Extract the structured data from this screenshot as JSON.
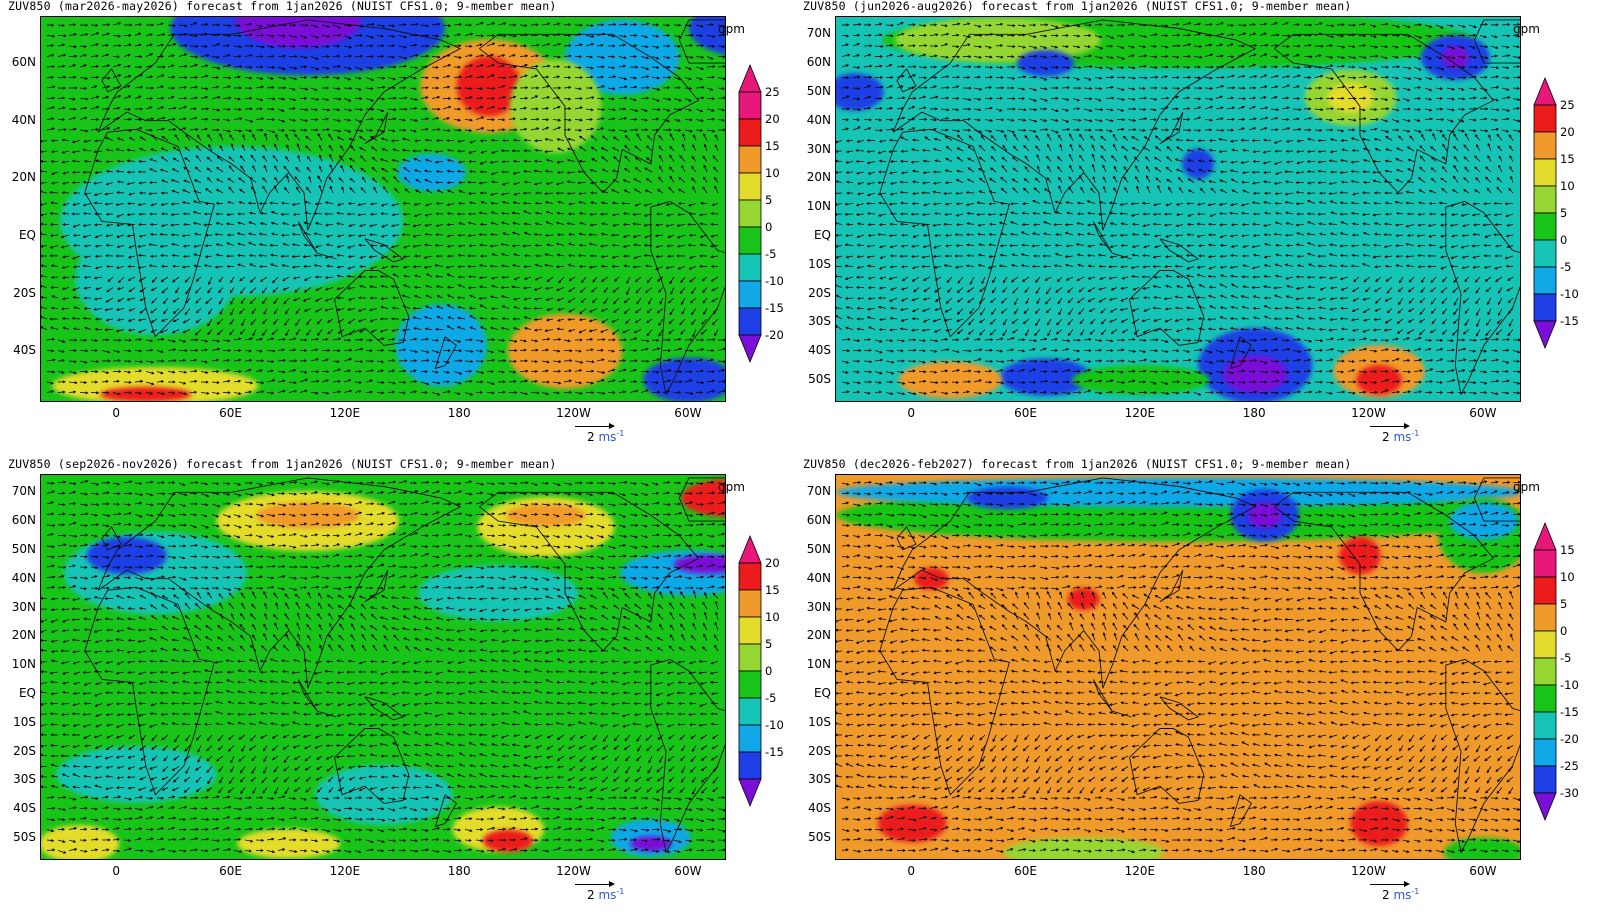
{
  "figure": {
    "colors": {
      "scale": [
        "#7a0fd8",
        "#1f3fe6",
        "#10a8e6",
        "#16c4b6",
        "#19c419",
        "#96d633",
        "#e4dc2c",
        "#f09a2c",
        "#ec1c1c",
        "#e8187a"
      ],
      "vector": "#000000",
      "coast": "#111111",
      "unit_blue": "#2f56d6"
    },
    "vector_scale_text": "2",
    "vector_scale_unit": "ms",
    "vector_scale_exp": "-1",
    "unit_label": "gpm"
  },
  "panels": [
    {
      "title": "ZUV850 (mar2026-may2026) forecast from 1jan2026 (NUIST CFS1.0; 9-member mean)",
      "lat_labels": [
        "60N",
        "40N",
        "20N",
        "EQ",
        "20S",
        "40S"
      ],
      "lon_labels": [
        "0",
        "60E",
        "120E",
        "180",
        "120W",
        "60W"
      ],
      "colorbar": {
        "levels": [
          "-20",
          "-15",
          "-10",
          "-5",
          "0",
          "5",
          "10",
          "15",
          "20",
          "25"
        ],
        "colors": [
          "#7a0fd8",
          "#1f3fe6",
          "#10a8e6",
          "#16c4b6",
          "#19c419",
          "#96d633",
          "#e4dc2c",
          "#f09a2c",
          "#ec1c1c",
          "#e8187a",
          "#e8187a"
        ]
      },
      "field": {
        "background": "#19c419",
        "blobs": [
          {
            "lon": 60,
            "lat": 5,
            "w": 150,
            "h": 40,
            "color": "#16c4b6"
          },
          {
            "lon": 20,
            "lat": -15,
            "w": 70,
            "h": 30,
            "color": "#16c4b6"
          },
          {
            "lon": 100,
            "lat": 72,
            "w": 120,
            "h": 25,
            "color": "#1f3fe6"
          },
          {
            "lon": 95,
            "lat": 75,
            "w": 55,
            "h": 15,
            "color": "#7a0fd8"
          },
          {
            "lon": 195,
            "lat": 52,
            "w": 60,
            "h": 25,
            "color": "#f09a2c"
          },
          {
            "lon": 195,
            "lat": 52,
            "w": 28,
            "h": 16,
            "color": "#ec1c1c"
          },
          {
            "lon": 265,
            "lat": 62,
            "w": 50,
            "h": 20,
            "color": "#10a8e6"
          },
          {
            "lon": 330,
            "lat": 72,
            "w": 50,
            "h": 15,
            "color": "#1f3fe6"
          },
          {
            "lon": 230,
            "lat": 45,
            "w": 40,
            "h": 25,
            "color": "#96d633"
          },
          {
            "lon": 165,
            "lat": 22,
            "w": 30,
            "h": 10,
            "color": "#10a8e6"
          },
          {
            "lon": 170,
            "lat": -38,
            "w": 40,
            "h": 22,
            "color": "#10a8e6"
          },
          {
            "lon": 235,
            "lat": -40,
            "w": 50,
            "h": 20,
            "color": "#f09a2c"
          },
          {
            "lon": 300,
            "lat": -50,
            "w": 40,
            "h": 12,
            "color": "#1f3fe6"
          },
          {
            "lon": 20,
            "lat": -52,
            "w": 90,
            "h": 10,
            "color": "#e4dc2c"
          },
          {
            "lon": 15,
            "lat": -55,
            "w": 40,
            "h": 4,
            "color": "#ec1c1c"
          }
        ]
      }
    },
    {
      "title": "ZUV850 (jun2026-aug2026) forecast from 1jan2026 (NUIST CFS1.0; 9-member mean)",
      "lat_labels": [
        "70N",
        "60N",
        "50N",
        "40N",
        "30N",
        "20N",
        "10N",
        "EQ",
        "10S",
        "20S",
        "30S",
        "40S",
        "50S"
      ],
      "lon_labels": [
        "0",
        "60E",
        "120E",
        "180",
        "120W",
        "60W"
      ],
      "colorbar": {
        "levels": [
          "-15",
          "-10",
          "-5",
          "0",
          "5",
          "10",
          "15",
          "20",
          "25"
        ],
        "colors": [
          "#7a0fd8",
          "#1f3fe6",
          "#10a8e6",
          "#16c4b6",
          "#19c419",
          "#96d633",
          "#e4dc2c",
          "#f09a2c",
          "#ec1c1c",
          "#e8187a"
        ]
      },
      "field": {
        "background": "#16c4b6",
        "blobs": [
          {
            "lon": 140,
            "lat": 68,
            "w": 260,
            "h": 15,
            "color": "#19c419"
          },
          {
            "lon": 45,
            "lat": 68,
            "w": 90,
            "h": 12,
            "color": "#96d633"
          },
          {
            "lon": 230,
            "lat": 48,
            "w": 40,
            "h": 15,
            "color": "#96d633"
          },
          {
            "lon": 230,
            "lat": 48,
            "w": 20,
            "h": 8,
            "color": "#e4dc2c"
          },
          {
            "lon": 70,
            "lat": 60,
            "w": 25,
            "h": 7,
            "color": "#1f3fe6"
          },
          {
            "lon": -30,
            "lat": 50,
            "w": 25,
            "h": 10,
            "color": "#1f3fe6"
          },
          {
            "lon": 285,
            "lat": 62,
            "w": 30,
            "h": 12,
            "color": "#1f3fe6"
          },
          {
            "lon": 285,
            "lat": 62,
            "w": 12,
            "h": 6,
            "color": "#7a0fd8"
          },
          {
            "lon": 150,
            "lat": 25,
            "w": 14,
            "h": 8,
            "color": "#1f3fe6"
          },
          {
            "lon": 180,
            "lat": -45,
            "w": 50,
            "h": 20,
            "color": "#1f3fe6"
          },
          {
            "lon": 180,
            "lat": -48,
            "w": 28,
            "h": 10,
            "color": "#7a0fd8"
          },
          {
            "lon": 245,
            "lat": -47,
            "w": 40,
            "h": 14,
            "color": "#f09a2c"
          },
          {
            "lon": 245,
            "lat": -50,
            "w": 20,
            "h": 8,
            "color": "#ec1c1c"
          },
          {
            "lon": 70,
            "lat": -49,
            "w": 40,
            "h": 10,
            "color": "#1f3fe6"
          },
          {
            "lon": 20,
            "lat": -50,
            "w": 45,
            "h": 10,
            "color": "#f09a2c"
          },
          {
            "lon": 120,
            "lat": -50,
            "w": 60,
            "h": 8,
            "color": "#19c419"
          }
        ]
      }
    },
    {
      "title": "ZUV850 (sep2026-nov2026) forecast from 1jan2026 (NUIST CFS1.0; 9-member mean)",
      "lat_labels": [
        "70N",
        "60N",
        "50N",
        "40N",
        "30N",
        "20N",
        "10N",
        "EQ",
        "10S",
        "20S",
        "30S",
        "40S",
        "50S"
      ],
      "lon_labels": [
        "0",
        "60E",
        "120E",
        "180",
        "120W",
        "60W"
      ],
      "colorbar": {
        "levels": [
          "-15",
          "-10",
          "-5",
          "0",
          "5",
          "10",
          "15",
          "20"
        ],
        "colors": [
          "#7a0fd8",
          "#1f3fe6",
          "#10a8e6",
          "#16c4b6",
          "#19c419",
          "#96d633",
          "#e4dc2c",
          "#f09a2c",
          "#ec1c1c",
          "#e8187a"
        ]
      },
      "field": {
        "background": "#19c419",
        "blobs": [
          {
            "lon": 20,
            "lat": 42,
            "w": 80,
            "h": 22,
            "color": "#16c4b6"
          },
          {
            "lon": 5,
            "lat": 48,
            "w": 35,
            "h": 10,
            "color": "#1f3fe6"
          },
          {
            "lon": 100,
            "lat": 60,
            "w": 80,
            "h": 16,
            "color": "#e4dc2c"
          },
          {
            "lon": 100,
            "lat": 62,
            "w": 45,
            "h": 7,
            "color": "#f09a2c"
          },
          {
            "lon": 225,
            "lat": 58,
            "w": 60,
            "h": 16,
            "color": "#e4dc2c"
          },
          {
            "lon": 225,
            "lat": 62,
            "w": 35,
            "h": 6,
            "color": "#f09a2c"
          },
          {
            "lon": 320,
            "lat": 68,
            "w": 40,
            "h": 10,
            "color": "#ec1c1c"
          },
          {
            "lon": 200,
            "lat": 35,
            "w": 70,
            "h": 15,
            "color": "#16c4b6"
          },
          {
            "lon": 300,
            "lat": 42,
            "w": 60,
            "h": 12,
            "color": "#10a8e6"
          },
          {
            "lon": 310,
            "lat": 45,
            "w": 30,
            "h": 5,
            "color": "#7a0fd8"
          },
          {
            "lon": 10,
            "lat": -28,
            "w": 70,
            "h": 15,
            "color": "#16c4b6"
          },
          {
            "lon": 140,
            "lat": -35,
            "w": 60,
            "h": 16,
            "color": "#16c4b6"
          },
          {
            "lon": 200,
            "lat": -47,
            "w": 40,
            "h": 12,
            "color": "#e4dc2c"
          },
          {
            "lon": 205,
            "lat": -51,
            "w": 22,
            "h": 6,
            "color": "#ec1c1c"
          },
          {
            "lon": 280,
            "lat": -50,
            "w": 35,
            "h": 10,
            "color": "#10a8e6"
          },
          {
            "lon": 280,
            "lat": -52,
            "w": 18,
            "h": 4,
            "color": "#7a0fd8"
          },
          {
            "lon": -20,
            "lat": -52,
            "w": 35,
            "h": 10,
            "color": "#e4dc2c"
          },
          {
            "lon": 90,
            "lat": -52,
            "w": 45,
            "h": 8,
            "color": "#e4dc2c"
          }
        ]
      }
    },
    {
      "title": "ZUV850 (dec2026-feb2027) forecast from 1jan2026 (NUIST CFS1.0; 9-member mean)",
      "lat_labels": [
        "70N",
        "60N",
        "50N",
        "40N",
        "30N",
        "20N",
        "10N",
        "EQ",
        "10S",
        "20S",
        "30S",
        "40S",
        "50S"
      ],
      "lon_labels": [
        "0",
        "60E",
        "120E",
        "180",
        "120W",
        "60W"
      ],
      "colorbar": {
        "levels": [
          "-30",
          "-25",
          "-20",
          "-15",
          "-10",
          "-5",
          "0",
          "5",
          "10",
          "15"
        ],
        "colors": [
          "#7a0fd8",
          "#1f3fe6",
          "#10a8e6",
          "#16c4b6",
          "#19c419",
          "#96d633",
          "#e4dc2c",
          "#f09a2c",
          "#ec1c1c",
          "#e8187a",
          "#e8187a"
        ]
      },
      "field": {
        "background": "#f09a2c",
        "blobs": [
          {
            "lon": 140,
            "lat": 62,
            "w": 300,
            "h": 14,
            "color": "#19c419"
          },
          {
            "lon": 140,
            "lat": 70,
            "w": 300,
            "h": 8,
            "color": "#10a8e6"
          },
          {
            "lon": 50,
            "lat": 68,
            "w": 35,
            "h": 6,
            "color": "#1f3fe6"
          },
          {
            "lon": 185,
            "lat": 62,
            "w": 30,
            "h": 14,
            "color": "#1f3fe6"
          },
          {
            "lon": 185,
            "lat": 62,
            "w": 15,
            "h": 7,
            "color": "#7a0fd8"
          },
          {
            "lon": 300,
            "lat": 55,
            "w": 40,
            "h": 20,
            "color": "#19c419"
          },
          {
            "lon": 300,
            "lat": 60,
            "w": 30,
            "h": 10,
            "color": "#10a8e6"
          },
          {
            "lon": 235,
            "lat": 48,
            "w": 18,
            "h": 10,
            "color": "#ec1c1c"
          },
          {
            "lon": 10,
            "lat": 40,
            "w": 15,
            "h": 6,
            "color": "#ec1c1c"
          },
          {
            "lon": 90,
            "lat": 33,
            "w": 14,
            "h": 6,
            "color": "#ec1c1c"
          },
          {
            "lon": 0,
            "lat": -45,
            "w": 30,
            "h": 10,
            "color": "#ec1c1c"
          },
          {
            "lon": 245,
            "lat": -45,
            "w": 25,
            "h": 12,
            "color": "#ec1c1c"
          },
          {
            "lon": 90,
            "lat": -55,
            "w": 70,
            "h": 8,
            "color": "#96d633"
          },
          {
            "lon": 300,
            "lat": -55,
            "w": 35,
            "h": 8,
            "color": "#19c419"
          }
        ]
      }
    }
  ]
}
